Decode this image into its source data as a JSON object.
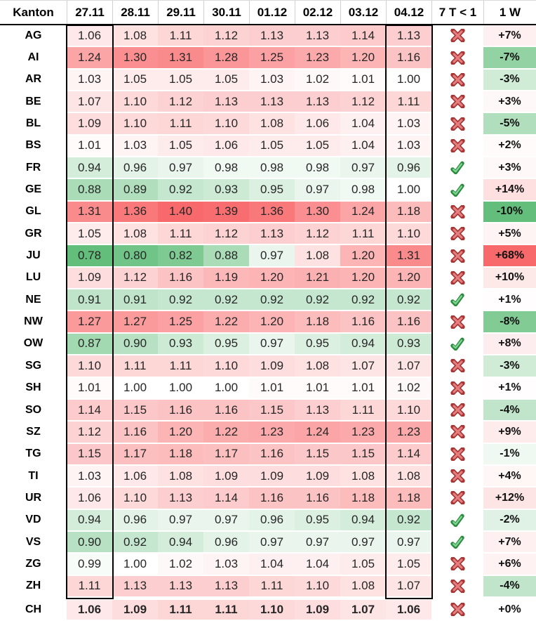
{
  "chart_data": {
    "type": "heatmap",
    "corner_label": "Kanton",
    "columns": [
      "27.11",
      "28.11",
      "29.11",
      "30.11",
      "01.12",
      "02.12",
      "03.12",
      "04.12"
    ],
    "seven_day_label": "7 T < 1",
    "week_label": "1 W",
    "highlighted_columns": [
      "27.11",
      "04.12"
    ],
    "rows": [
      {
        "kanton": "AG",
        "values": [
          1.06,
          1.08,
          1.11,
          1.12,
          1.13,
          1.13,
          1.14,
          1.13
        ],
        "seven_days_below_1": false,
        "week_change_pct": 7
      },
      {
        "kanton": "AI",
        "values": [
          1.24,
          1.3,
          1.31,
          1.28,
          1.25,
          1.23,
          1.2,
          1.16
        ],
        "seven_days_below_1": false,
        "week_change_pct": -7
      },
      {
        "kanton": "AR",
        "values": [
          1.03,
          1.05,
          1.05,
          1.05,
          1.03,
          1.02,
          1.01,
          1.0
        ],
        "seven_days_below_1": false,
        "week_change_pct": -3
      },
      {
        "kanton": "BE",
        "values": [
          1.07,
          1.1,
          1.12,
          1.13,
          1.13,
          1.13,
          1.12,
          1.11
        ],
        "seven_days_below_1": false,
        "week_change_pct": 3
      },
      {
        "kanton": "BL",
        "values": [
          1.09,
          1.1,
          1.11,
          1.1,
          1.08,
          1.06,
          1.04,
          1.03
        ],
        "seven_days_below_1": false,
        "week_change_pct": -5
      },
      {
        "kanton": "BS",
        "values": [
          1.01,
          1.03,
          1.05,
          1.06,
          1.05,
          1.05,
          1.04,
          1.03
        ],
        "seven_days_below_1": false,
        "week_change_pct": 2
      },
      {
        "kanton": "FR",
        "values": [
          0.94,
          0.96,
          0.97,
          0.98,
          0.98,
          0.98,
          0.97,
          0.96
        ],
        "seven_days_below_1": true,
        "week_change_pct": 3
      },
      {
        "kanton": "GE",
        "values": [
          0.88,
          0.89,
          0.92,
          0.93,
          0.95,
          0.97,
          0.98,
          1.0
        ],
        "seven_days_below_1": true,
        "week_change_pct": 14
      },
      {
        "kanton": "GL",
        "values": [
          1.31,
          1.36,
          1.4,
          1.39,
          1.36,
          1.3,
          1.24,
          1.18
        ],
        "seven_days_below_1": false,
        "week_change_pct": -10
      },
      {
        "kanton": "GR",
        "values": [
          1.05,
          1.08,
          1.11,
          1.12,
          1.13,
          1.12,
          1.11,
          1.1
        ],
        "seven_days_below_1": false,
        "week_change_pct": 5
      },
      {
        "kanton": "JU",
        "values": [
          0.78,
          0.8,
          0.82,
          0.88,
          0.97,
          1.08,
          1.2,
          1.31
        ],
        "seven_days_below_1": false,
        "week_change_pct": 68
      },
      {
        "kanton": "LU",
        "values": [
          1.09,
          1.12,
          1.16,
          1.19,
          1.2,
          1.21,
          1.2,
          1.2
        ],
        "seven_days_below_1": false,
        "week_change_pct": 10
      },
      {
        "kanton": "NE",
        "values": [
          0.91,
          0.91,
          0.92,
          0.92,
          0.92,
          0.92,
          0.92,
          0.92
        ],
        "seven_days_below_1": true,
        "week_change_pct": 1
      },
      {
        "kanton": "NW",
        "values": [
          1.27,
          1.27,
          1.25,
          1.22,
          1.2,
          1.18,
          1.16,
          1.16
        ],
        "seven_days_below_1": false,
        "week_change_pct": -8
      },
      {
        "kanton": "OW",
        "values": [
          0.87,
          0.9,
          0.93,
          0.95,
          0.97,
          0.95,
          0.94,
          0.93
        ],
        "seven_days_below_1": true,
        "week_change_pct": 8
      },
      {
        "kanton": "SG",
        "values": [
          1.1,
          1.11,
          1.11,
          1.1,
          1.09,
          1.08,
          1.07,
          1.07
        ],
        "seven_days_below_1": false,
        "week_change_pct": -3
      },
      {
        "kanton": "SH",
        "values": [
          1.01,
          1.0,
          1.0,
          1.0,
          1.01,
          1.01,
          1.01,
          1.02
        ],
        "seven_days_below_1": false,
        "week_change_pct": 1
      },
      {
        "kanton": "SO",
        "values": [
          1.14,
          1.15,
          1.16,
          1.16,
          1.15,
          1.13,
          1.11,
          1.1
        ],
        "seven_days_below_1": false,
        "week_change_pct": -4
      },
      {
        "kanton": "SZ",
        "values": [
          1.12,
          1.16,
          1.2,
          1.22,
          1.23,
          1.24,
          1.23,
          1.23
        ],
        "seven_days_below_1": false,
        "week_change_pct": 9
      },
      {
        "kanton": "TG",
        "values": [
          1.15,
          1.17,
          1.18,
          1.17,
          1.16,
          1.15,
          1.15,
          1.14
        ],
        "seven_days_below_1": false,
        "week_change_pct": -1
      },
      {
        "kanton": "TI",
        "values": [
          1.03,
          1.06,
          1.08,
          1.09,
          1.09,
          1.09,
          1.08,
          1.08
        ],
        "seven_days_below_1": false,
        "week_change_pct": 4
      },
      {
        "kanton": "UR",
        "values": [
          1.06,
          1.1,
          1.13,
          1.14,
          1.16,
          1.16,
          1.18,
          1.18
        ],
        "seven_days_below_1": false,
        "week_change_pct": 12
      },
      {
        "kanton": "VD",
        "values": [
          0.94,
          0.96,
          0.97,
          0.97,
          0.96,
          0.95,
          0.94,
          0.92
        ],
        "seven_days_below_1": true,
        "week_change_pct": -2
      },
      {
        "kanton": "VS",
        "values": [
          0.9,
          0.92,
          0.94,
          0.96,
          0.97,
          0.97,
          0.97,
          0.97
        ],
        "seven_days_below_1": true,
        "week_change_pct": 7
      },
      {
        "kanton": "ZG",
        "values": [
          0.99,
          1.0,
          1.02,
          1.03,
          1.04,
          1.04,
          1.05,
          1.05
        ],
        "seven_days_below_1": false,
        "week_change_pct": 6
      },
      {
        "kanton": "ZH",
        "values": [
          1.11,
          1.13,
          1.13,
          1.13,
          1.11,
          1.1,
          1.08,
          1.07
        ],
        "seven_days_below_1": false,
        "week_change_pct": -4
      }
    ],
    "total": {
      "kanton": "CH",
      "values": [
        1.06,
        1.09,
        1.11,
        1.11,
        1.1,
        1.09,
        1.07,
        1.06
      ],
      "seven_days_below_1": false,
      "week_change_pct": 0
    }
  },
  "colors": {
    "scale_red": "#f8696b",
    "scale_white": "#ffffff",
    "scale_green": "#63be7b",
    "value_mid": 1.0,
    "value_red_max": 1.4,
    "value_green_min": 0.78,
    "pct_red_max": 68,
    "pct_green_min": -10,
    "cross_outline": "#a63535",
    "cross_fill": "#e57f7f",
    "check_outline": "#2b8a3e",
    "check_fill": "#7ed492",
    "border_black": "#000000",
    "grid_gray": "#d0d0d0"
  },
  "icons": {
    "pass": "check-icon",
    "fail": "cross-icon"
  }
}
